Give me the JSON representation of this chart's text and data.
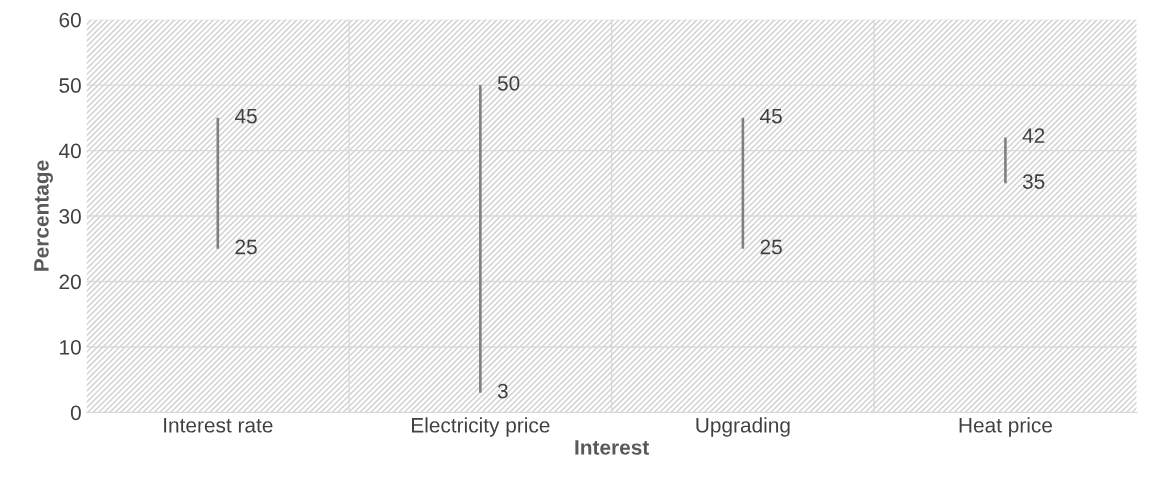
{
  "chart_data": {
    "type": "bar",
    "xlabel": "Interest",
    "ylabel": "Percentage",
    "categories": [
      "Interest rate",
      "Electricity price",
      "Upgrading",
      "Heat price"
    ],
    "base": [
      25,
      3,
      25,
      35
    ],
    "values": [
      20,
      47,
      20,
      7
    ],
    "color": "#808080",
    "ylim": [
      0,
      60
    ],
    "yticks": [
      0,
      10,
      20,
      30,
      40,
      50,
      60
    ],
    "grid": true,
    "annotations": [
      {
        "text": "45",
        "x": "Interest rate",
        "y": 45
      },
      {
        "text": "25",
        "x": "Interest rate",
        "y": 25
      },
      {
        "text": "50",
        "x": "Electricity price",
        "y": 50
      },
      {
        "text": "3",
        "x": "Electricity price",
        "y": 3
      },
      {
        "text": "45",
        "x": "Upgrading",
        "y": 45
      },
      {
        "text": "25",
        "x": "Upgrading",
        "y": 25
      },
      {
        "text": "42",
        "x": "Heat price",
        "y": 42
      },
      {
        "text": "35",
        "x": "Heat price",
        "y": 35
      }
    ]
  }
}
